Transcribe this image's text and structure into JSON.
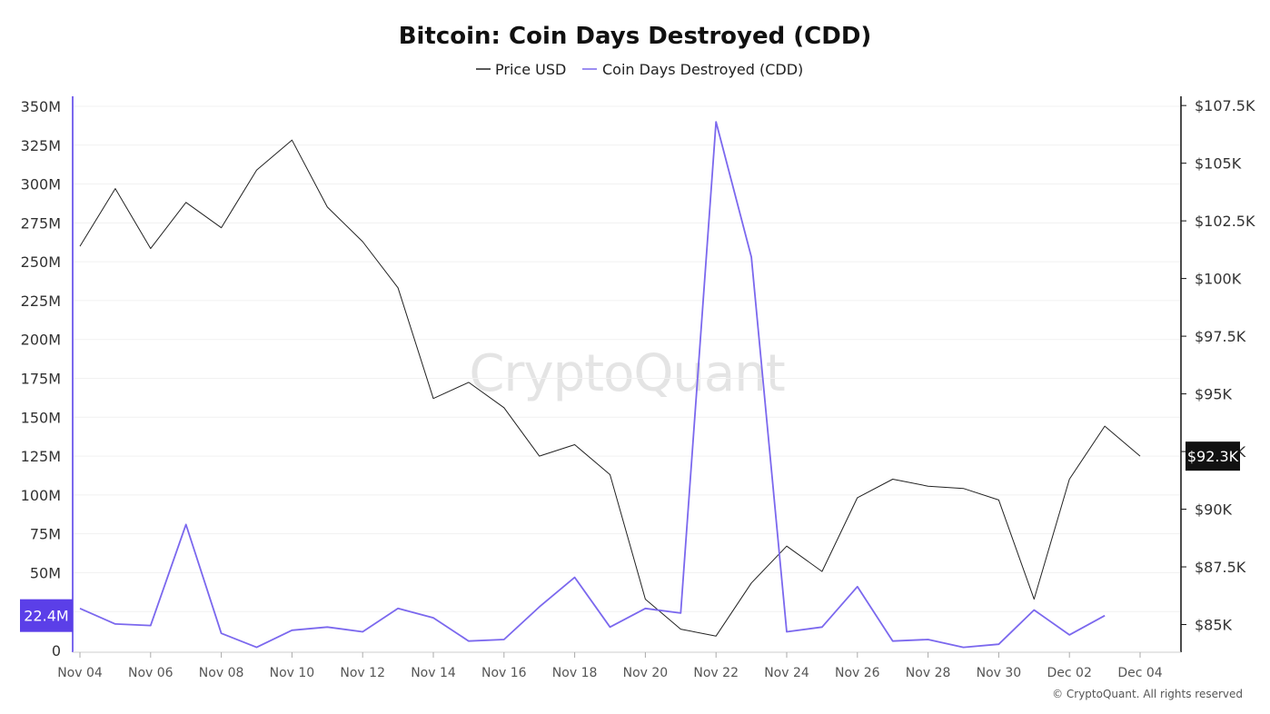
{
  "chart_data": {
    "type": "line",
    "title": "Bitcoin: Coin Days Destroyed (CDD)",
    "legend": {
      "placement": "top-center",
      "entries": [
        {
          "name": "Price USD",
          "color": "#222222"
        },
        {
          "name": "Coin Days Destroyed (CDD)",
          "color": "#7b68ee"
        }
      ]
    },
    "x_tick_labels": [
      "Nov 04",
      "Nov 06",
      "Nov 08",
      "Nov 10",
      "Nov 12",
      "Nov 14",
      "Nov 16",
      "Nov 18",
      "Nov 20",
      "Nov 22",
      "Nov 24",
      "Nov 26",
      "Nov 28",
      "Nov 30",
      "Dec 02",
      "Dec 04"
    ],
    "x": [
      "Nov 04",
      "Nov 05",
      "Nov 06",
      "Nov 07",
      "Nov 08",
      "Nov 09",
      "Nov 10",
      "Nov 11",
      "Nov 12",
      "Nov 13",
      "Nov 14",
      "Nov 15",
      "Nov 16",
      "Nov 17",
      "Nov 18",
      "Nov 19",
      "Nov 20",
      "Nov 21",
      "Nov 22",
      "Nov 23",
      "Nov 24",
      "Nov 25",
      "Nov 26",
      "Nov 27",
      "Nov 28",
      "Nov 29",
      "Nov 30",
      "Dec 01",
      "Dec 02",
      "Dec 03",
      "Dec 04"
    ],
    "left_axis": {
      "range": [
        0,
        350000000
      ],
      "tick_values": [
        0,
        25000000,
        50000000,
        75000000,
        100000000,
        125000000,
        150000000,
        175000000,
        200000000,
        225000000,
        250000000,
        275000000,
        300000000,
        325000000,
        350000000
      ],
      "tick_labels": [
        "0",
        "25M",
        "50M",
        "75M",
        "100M",
        "125M",
        "150M",
        "175M",
        "200M",
        "225M",
        "250M",
        "275M",
        "300M",
        "325M",
        "350M"
      ],
      "color": "#7b68ee"
    },
    "right_axis": {
      "range": [
        83800,
        107900
      ],
      "tick_values": [
        85000,
        87500,
        90000,
        92500,
        95000,
        97500,
        100000,
        102500,
        105000,
        107500
      ],
      "tick_labels": [
        "$85K",
        "$87.5K",
        "$90K",
        "$92.5K",
        "$95K",
        "$97.5K",
        "$100K",
        "$102.5K",
        "$105K",
        "$107.5K"
      ],
      "color": "#222222"
    },
    "grid": true,
    "series": [
      {
        "name": "Price USD",
        "axis": "right",
        "color": "#222222",
        "values": [
          101400,
          103900,
          101300,
          103300,
          102200,
          104700,
          106000,
          103100,
          101600,
          99600,
          94800,
          95500,
          94400,
          92300,
          92800,
          91500,
          86100,
          84800,
          84500,
          86800,
          88400,
          87300,
          90500,
          91300,
          91000,
          90900,
          90400,
          86100,
          91300,
          93600,
          92300
        ]
      },
      {
        "name": "Coin Days Destroyed (CDD)",
        "axis": "left",
        "color": "#7b68ee",
        "values": [
          27000000,
          17000000,
          16000000,
          81000000,
          11000000,
          2000000,
          13000000,
          15000000,
          12000000,
          27000000,
          21000000,
          6000000,
          7000000,
          28000000,
          47000000,
          15000000,
          27000000,
          24000000,
          340000000,
          253000000,
          12000000,
          15000000,
          41000000,
          6000000,
          7000000,
          2000000,
          4000000,
          26000000,
          10000000,
          22400000,
          null
        ]
      }
    ],
    "last_value_badges": [
      {
        "axis": "left",
        "label": "22.4M",
        "background": "#5b3fe8"
      },
      {
        "axis": "right",
        "label": "$92.3K",
        "background": "#111111"
      }
    ],
    "watermark": "CryptoQuant",
    "copyright": "© CryptoQuant. All rights reserved"
  }
}
